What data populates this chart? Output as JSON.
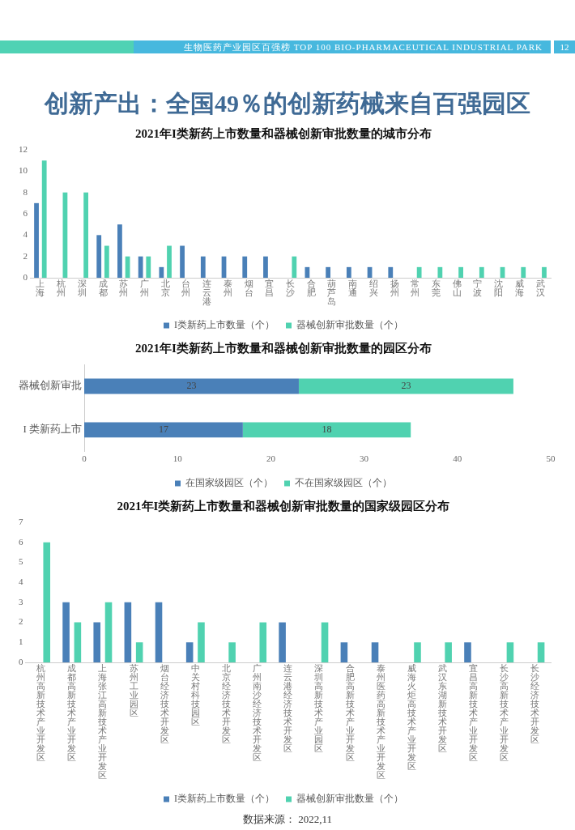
{
  "chart_data": [
    {
      "type": "other",
      "title": "创新产出：全国49％的创新药械来自百强园区",
      "annotations": [
        "生物医药产业园区百强榜 TOP 100 BIO-PHARMACEUTICAL INDUSTRIAL PARK",
        "12"
      ]
    },
    {
      "type": "bar",
      "title": "2021年I类新药上市数量和器械创新审批数量的城市分布",
      "categories": [
        "上海",
        "杭州",
        "深圳",
        "成都",
        "苏州",
        "广州",
        "北京",
        "台州",
        "连云港",
        "泰州",
        "烟台",
        "宜昌",
        "长沙",
        "合肥",
        "葫芦岛",
        "南通",
        "绍兴",
        "扬州",
        "常州",
        "东莞",
        "佛山",
        "宁波",
        "沈阳",
        "威海",
        "武汉"
      ],
      "series": [
        {
          "name": "I类新药上市数量（个）",
          "color": "#4a80b8",
          "values": [
            7,
            null,
            null,
            4,
            5,
            2,
            1,
            3,
            2,
            2,
            2,
            2,
            null,
            1,
            1,
            1,
            1,
            1,
            null,
            null,
            null,
            null,
            null,
            null,
            null
          ]
        },
        {
          "name": "器械创新审批数量（个）",
          "color": "#50d2b0",
          "values": [
            11,
            8,
            8,
            3,
            2,
            2,
            3,
            null,
            null,
            null,
            null,
            null,
            2,
            null,
            null,
            null,
            null,
            null,
            1,
            1,
            1,
            1,
            1,
            1,
            1
          ]
        }
      ],
      "ylim": [
        0,
        12
      ],
      "yticks": [
        0,
        2,
        4,
        6,
        8,
        10,
        12
      ],
      "grid": false,
      "legend": "bottom"
    },
    {
      "type": "bar",
      "orientation": "horizontal",
      "stacked": true,
      "title": "2021年I类新药上市数量和器械创新审批数量的园区分布",
      "categories": [
        "器械创新审批",
        "I 类新药上市"
      ],
      "series": [
        {
          "name": "在国家级园区（个）",
          "color": "#4a80b8",
          "values": [
            23,
            17
          ]
        },
        {
          "name": "不在国家级园区（个）",
          "color": "#50d2b0",
          "values": [
            23,
            18
          ]
        }
      ],
      "xlim": [
        0,
        50
      ],
      "xticks": [
        0,
        10,
        20,
        30,
        40,
        50
      ],
      "data_labels": true,
      "grid": false,
      "legend": "bottom"
    },
    {
      "type": "bar",
      "title": "2021年I类新药上市数量和器械创新审批数量的国家级园区分布",
      "categories": [
        "杭州高新技术产业开发区",
        "成都高新技术产业开发区",
        "上海张江高新技术产业开发区",
        "苏州工业园区",
        "烟台经济技术开发区",
        "中关村科技园区",
        "北京经济技术开发区",
        "广州南沙经济技术开发区",
        "连云港经济技术开发区",
        "深圳高新技术产业园区",
        "合肥高新技术产业开发区",
        "泰州医药高新技术产业开发区",
        "威海火炬高技术产业开发区",
        "武汉东湖新技术开发区",
        "宜昌高新技术产业开发区",
        "长沙高新技术产业开发区",
        "长沙经济技术开发区"
      ],
      "series": [
        {
          "name": "I类新药上市数量（个）",
          "color": "#4a80b8",
          "values": [
            null,
            3,
            2,
            3,
            3,
            1,
            null,
            null,
            2,
            null,
            1,
            1,
            null,
            null,
            1,
            null,
            null
          ]
        },
        {
          "name": "器械创新审批数量（个）",
          "color": "#50d2b0",
          "values": [
            6,
            2,
            3,
            1,
            null,
            2,
            1,
            2,
            null,
            2,
            null,
            null,
            1,
            1,
            null,
            1,
            1
          ]
        }
      ],
      "ylim": [
        0,
        7
      ],
      "yticks": [
        0,
        1,
        2,
        3,
        4,
        5,
        6,
        7
      ],
      "grid": false,
      "legend": "bottom",
      "annotations": [
        "数据来源： 2022,11"
      ]
    }
  ]
}
